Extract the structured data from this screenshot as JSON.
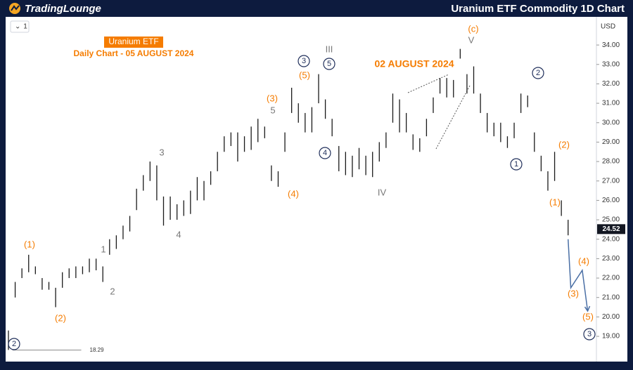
{
  "header": {
    "logo": "TradingLounge",
    "title": "Uranium ETF Commodity 1D Chart"
  },
  "toolbar": {
    "interval": "1",
    "currency": "USD"
  },
  "chart_data": {
    "type": "range-bar",
    "lows": [
      18.3,
      21.0,
      22.0,
      22.3,
      22.2,
      21.4,
      21.4,
      20.5,
      21.5,
      22.0,
      22.0,
      22.2,
      22.3,
      22.4,
      21.8,
      23.2,
      23.5,
      24.0,
      24.4,
      25.5,
      26.5,
      27.0,
      26.0,
      24.7,
      25.0,
      25.0,
      25.2,
      25.3,
      26.0,
      26.0,
      26.8,
      27.5,
      28.5,
      28.8,
      28.0,
      28.5,
      28.6,
      29.0,
      29.2,
      27.0,
      26.7,
      28.5,
      30.5,
      30.0,
      29.5,
      29.5,
      31.0,
      30.2,
      29.3,
      27.5,
      27.3,
      27.2,
      27.6,
      27.3,
      27.2,
      28.0,
      28.7,
      30.0,
      29.5,
      29.5,
      28.6,
      28.5,
      29.3,
      30.5,
      31.5,
      31.3,
      31.3,
      33.3,
      31.5,
      31.5,
      30.5,
      29.5,
      29.3,
      29.0,
      28.7,
      29.2,
      30.5,
      30.8,
      28.5,
      27.5,
      26.5,
      27.0,
      25.2,
      24.2
    ],
    "highs": [
      19.3,
      21.8,
      22.5,
      23.2,
      22.6,
      22.0,
      21.8,
      21.5,
      22.3,
      22.5,
      22.6,
      22.6,
      23.0,
      23.0,
      22.6,
      24.0,
      24.2,
      24.7,
      25.2,
      26.6,
      27.3,
      28.0,
      27.8,
      26.2,
      26.2,
      25.8,
      26.0,
      26.5,
      27.2,
      27.0,
      27.5,
      28.5,
      29.3,
      29.5,
      29.5,
      29.3,
      29.8,
      30.2,
      29.8,
      27.8,
      27.5,
      29.5,
      31.8,
      31.0,
      30.5,
      30.8,
      32.5,
      31.2,
      30.2,
      28.8,
      28.5,
      28.3,
      28.7,
      28.3,
      28.5,
      29.0,
      29.5,
      31.5,
      31.2,
      30.5,
      29.4,
      29.2,
      30.2,
      31.3,
      32.3,
      32.3,
      32.2,
      33.8,
      32.5,
      32.9,
      31.5,
      30.5,
      30.0,
      30.0,
      29.3,
      30.0,
      31.5,
      31.4,
      29.5,
      28.3,
      27.5,
      28.5,
      26.0,
      25.0
    ],
    "bar_color": "#1a1a1a",
    "projection": {
      "color": "#4a6fa5",
      "x": [
        83,
        83.4,
        85.1,
        85.9
      ],
      "values": [
        24.0,
        21.5,
        22.4,
        20.3
      ]
    },
    "support": {
      "value": 18.29,
      "x": [
        0.6,
        10.8
      ]
    },
    "last_price": 24.52,
    "xlim": [
      -1.25,
      87.2
    ],
    "ylim": [
      17.7,
      35.45
    ],
    "yticks": [
      {
        "value": 19,
        "label": "19.00"
      },
      {
        "value": 20,
        "label": "20.00"
      },
      {
        "value": 21,
        "label": "21.00"
      },
      {
        "value": 22,
        "label": "22.00"
      },
      {
        "value": 23,
        "label": "23.00"
      },
      {
        "value": 24,
        "label": "24.00"
      },
      {
        "value": 25,
        "label": "25.00"
      },
      {
        "value": 26,
        "label": "26.00"
      },
      {
        "value": 27,
        "label": "27.00"
      },
      {
        "value": 28,
        "label": "28.00"
      },
      {
        "value": 29,
        "label": "29.00"
      },
      {
        "value": 30,
        "label": "30.00"
      },
      {
        "value": 31,
        "label": "31.00"
      },
      {
        "value": 32,
        "label": "32.00"
      },
      {
        "value": 33,
        "label": "33.00"
      },
      {
        "value": 34,
        "label": "34.00"
      }
    ],
    "annotations": [
      "Uranium ETF",
      "Daily Chart - 05 AUGUST 2024",
      "02 AUGUST 2024",
      "(1)",
      "(2)",
      "1",
      "2",
      "3",
      "4",
      "(3)",
      "5",
      "(4)",
      "(5)",
      "3",
      "5",
      "III",
      "4",
      "IV",
      "(c)",
      "V",
      "2",
      "1",
      "(2)",
      "(1)",
      "(4)",
      "(3)",
      "(5)",
      "3",
      "2"
    ]
  }
}
